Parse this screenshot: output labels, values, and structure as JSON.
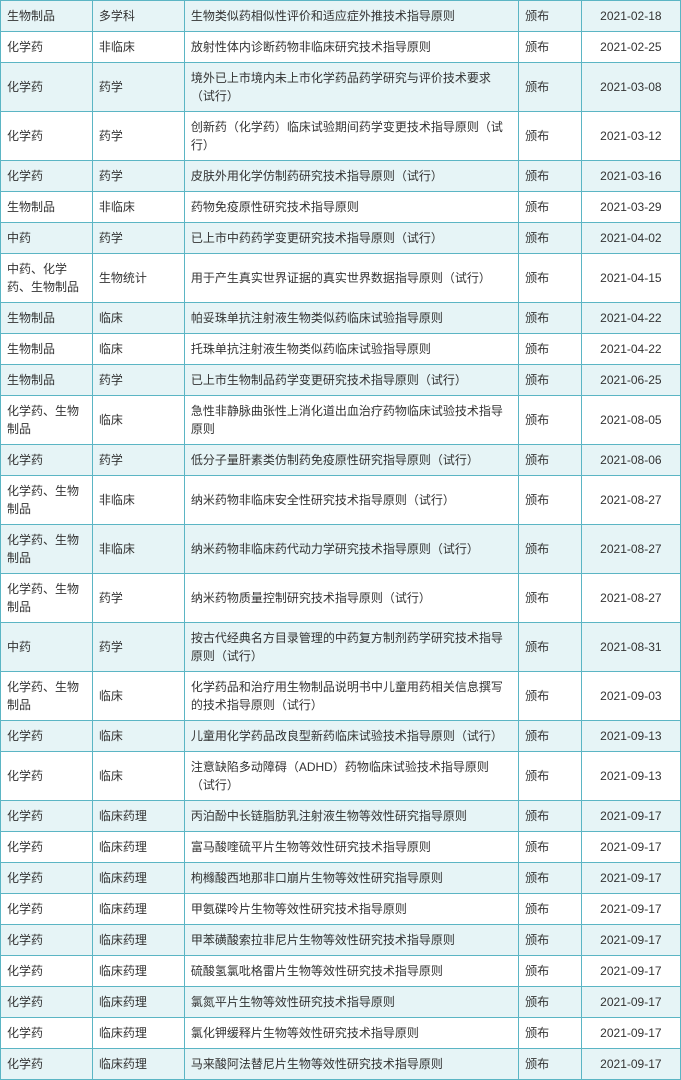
{
  "table": {
    "border_color": "#5bb5c4",
    "alt_row_bg": "#e6f4f6",
    "row_bg": "#ffffff",
    "font_size": 12,
    "rows": [
      {
        "alt": true,
        "c1": "生物制品",
        "c2": "多学科",
        "c3": "生物类似药相似性评价和适应症外推技术指导原则",
        "c4": "颁布",
        "c5": "2021-02-18"
      },
      {
        "alt": false,
        "c1": "化学药",
        "c2": "非临床",
        "c3": "放射性体内诊断药物非临床研究技术指导原则",
        "c4": "颁布",
        "c5": "2021-02-25"
      },
      {
        "alt": true,
        "c1": "化学药",
        "c2": "药学",
        "c3": "境外已上市境内未上市化学药品药学研究与评价技术要求（试行）",
        "c4": "颁布",
        "c5": "2021-03-08"
      },
      {
        "alt": false,
        "c1": "化学药",
        "c2": "药学",
        "c3": "创新药（化学药）临床试验期间药学变更技术指导原则（试行）",
        "c4": "颁布",
        "c5": "2021-03-12"
      },
      {
        "alt": true,
        "c1": "化学药",
        "c2": "药学",
        "c3": "皮肤外用化学仿制药研究技术指导原则（试行）",
        "c4": "颁布",
        "c5": "2021-03-16"
      },
      {
        "alt": false,
        "c1": "生物制品",
        "c2": "非临床",
        "c3": "药物免疫原性研究技术指导原则",
        "c4": "颁布",
        "c5": "2021-03-29"
      },
      {
        "alt": true,
        "c1": "中药",
        "c2": "药学",
        "c3": "已上市中药药学变更研究技术指导原则（试行）",
        "c4": "颁布",
        "c5": "2021-04-02"
      },
      {
        "alt": false,
        "c1": "中药、化学药、生物制品",
        "c2": "生物统计",
        "c3": "用于产生真实世界证据的真实世界数据指导原则（试行）",
        "c4": "颁布",
        "c5": "2021-04-15"
      },
      {
        "alt": true,
        "c1": "生物制品",
        "c2": "临床",
        "c3": "帕妥珠单抗注射液生物类似药临床试验指导原则",
        "c4": "颁布",
        "c5": "2021-04-22"
      },
      {
        "alt": false,
        "c1": "生物制品",
        "c2": "临床",
        "c3": "托珠单抗注射液生物类似药临床试验指导原则",
        "c4": "颁布",
        "c5": "2021-04-22"
      },
      {
        "alt": true,
        "c1": "生物制品",
        "c2": "药学",
        "c3": "已上市生物制品药学变更研究技术指导原则（试行）",
        "c4": "颁布",
        "c5": "2021-06-25"
      },
      {
        "alt": false,
        "c1": "化学药、生物制品",
        "c2": "临床",
        "c3": "急性非静脉曲张性上消化道出血治疗药物临床试验技术指导原则",
        "c4": "颁布",
        "c5": "2021-08-05"
      },
      {
        "alt": true,
        "c1": "化学药",
        "c2": "药学",
        "c3": "低分子量肝素类仿制药免疫原性研究指导原则（试行）",
        "c4": "颁布",
        "c5": "2021-08-06"
      },
      {
        "alt": false,
        "c1": "化学药、生物制品",
        "c2": "非临床",
        "c3": "纳米药物非临床安全性研究技术指导原则（试行）",
        "c4": "颁布",
        "c5": "2021-08-27"
      },
      {
        "alt": true,
        "c1": "化学药、生物制品",
        "c2": "非临床",
        "c3": "纳米药物非临床药代动力学研究技术指导原则（试行）",
        "c4": "颁布",
        "c5": "2021-08-27"
      },
      {
        "alt": false,
        "c1": "化学药、生物制品",
        "c2": "药学",
        "c3": "纳米药物质量控制研究技术指导原则（试行）",
        "c4": "颁布",
        "c5": "2021-08-27"
      },
      {
        "alt": true,
        "c1": "中药",
        "c2": "药学",
        "c3": "按古代经典名方目录管理的中药复方制剂药学研究技术指导原则（试行）",
        "c4": "颁布",
        "c5": "2021-08-31"
      },
      {
        "alt": false,
        "c1": "化学药、生物制品",
        "c2": "临床",
        "c3": "化学药品和治疗用生物制品说明书中儿童用药相关信息撰写的技术指导原则（试行）",
        "c4": "颁布",
        "c5": "2021-09-03"
      },
      {
        "alt": true,
        "c1": "化学药",
        "c2": "临床",
        "c3": "儿童用化学药品改良型新药临床试验技术指导原则（试行）",
        "c4": "颁布",
        "c5": "2021-09-13"
      },
      {
        "alt": false,
        "c1": "化学药",
        "c2": "临床",
        "c3": "注意缺陷多动障碍（ADHD）药物临床试验技术指导原则（试行）",
        "c4": "颁布",
        "c5": "2021-09-13"
      },
      {
        "alt": true,
        "c1": "化学药",
        "c2": "临床药理",
        "c3": "丙泊酚中长链脂肪乳注射液生物等效性研究指导原则",
        "c4": "颁布",
        "c5": "2021-09-17"
      },
      {
        "alt": false,
        "c1": "化学药",
        "c2": "临床药理",
        "c3": "富马酸喹硫平片生物等效性研究技术指导原则",
        "c4": "颁布",
        "c5": "2021-09-17"
      },
      {
        "alt": true,
        "c1": "化学药",
        "c2": "临床药理",
        "c3": "枸橼酸西地那非口崩片生物等效性研究指导原则",
        "c4": "颁布",
        "c5": "2021-09-17"
      },
      {
        "alt": false,
        "c1": "化学药",
        "c2": "临床药理",
        "c3": "甲氨碟呤片生物等效性研究技术指导原则",
        "c4": "颁布",
        "c5": "2021-09-17"
      },
      {
        "alt": true,
        "c1": "化学药",
        "c2": "临床药理",
        "c3": "甲苯磺酸索拉非尼片生物等效性研究技术指导原则",
        "c4": "颁布",
        "c5": "2021-09-17"
      },
      {
        "alt": false,
        "c1": "化学药",
        "c2": "临床药理",
        "c3": "硫酸氢氯吡格雷片生物等效性研究技术指导原则",
        "c4": "颁布",
        "c5": "2021-09-17"
      },
      {
        "alt": true,
        "c1": "化学药",
        "c2": "临床药理",
        "c3": "氯氮平片生物等效性研究技术指导原则",
        "c4": "颁布",
        "c5": "2021-09-17"
      },
      {
        "alt": false,
        "c1": "化学药",
        "c2": "临床药理",
        "c3": "氯化钾缓释片生物等效性研究技术指导原则",
        "c4": "颁布",
        "c5": "2021-09-17"
      },
      {
        "alt": true,
        "c1": "化学药",
        "c2": "临床药理",
        "c3": "马来酸阿法替尼片生物等效性研究技术指导原则",
        "c4": "颁布",
        "c5": "2021-09-17"
      }
    ]
  }
}
